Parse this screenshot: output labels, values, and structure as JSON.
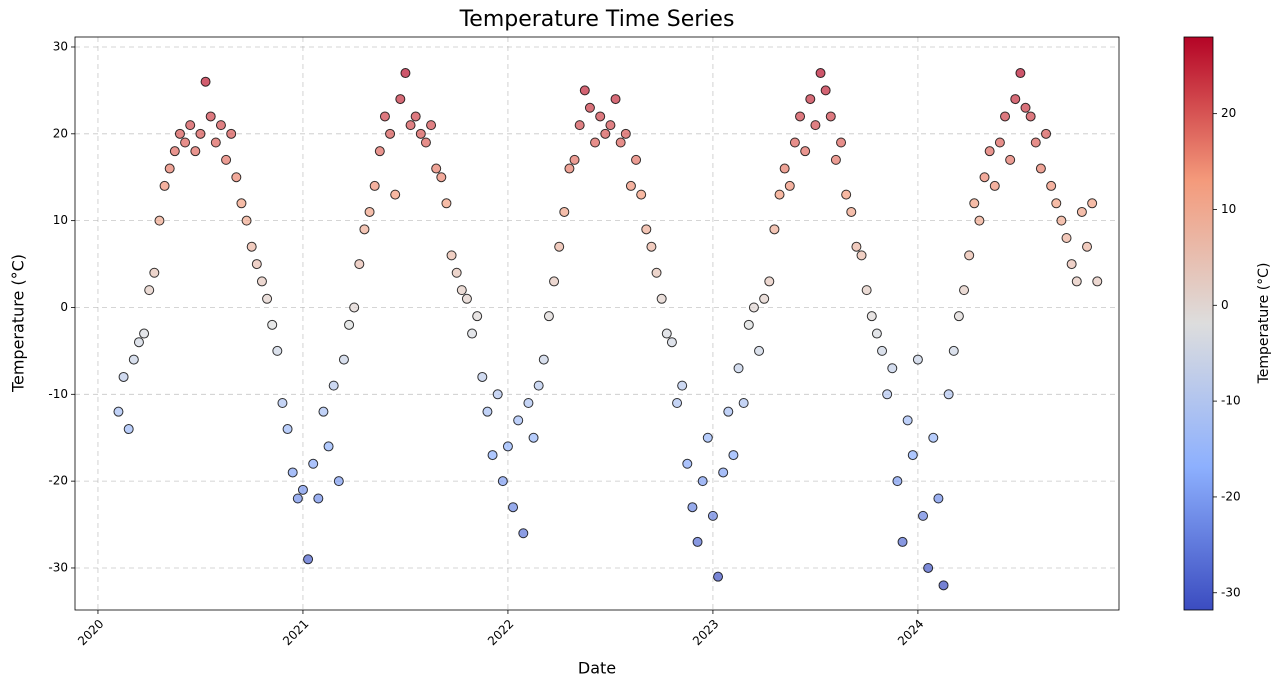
{
  "chart_data": {
    "type": "scatter",
    "title": "Temperature Time Series",
    "xlabel": "Date",
    "ylabel": "Temperature (°C)",
    "x": [
      2020.1,
      2020.125,
      2020.15,
      2020.175,
      2020.2,
      2020.225,
      2020.25,
      2020.275,
      2020.3,
      2020.325,
      2020.35,
      2020.375,
      2020.4,
      2020.425,
      2020.45,
      2020.475,
      2020.5,
      2020.525,
      2020.55,
      2020.575,
      2020.6,
      2020.625,
      2020.65,
      2020.675,
      2020.7,
      2020.725,
      2020.75,
      2020.775,
      2020.8,
      2020.825,
      2020.85,
      2020.875,
      2020.9,
      2020.925,
      2020.95,
      2020.975,
      2021,
      2021.025,
      2021.05,
      2021.075,
      2021.1,
      2021.125,
      2021.15,
      2021.175,
      2021.2,
      2021.225,
      2021.25,
      2021.275,
      2021.3,
      2021.325,
      2021.35,
      2021.375,
      2021.4,
      2021.425,
      2021.45,
      2021.475,
      2021.5,
      2021.525,
      2021.55,
      2021.575,
      2021.6,
      2021.625,
      2021.65,
      2021.675,
      2021.7,
      2021.725,
      2021.75,
      2021.775,
      2021.8,
      2021.825,
      2021.85,
      2021.875,
      2021.9,
      2021.925,
      2021.95,
      2021.975,
      2022,
      2022.025,
      2022.05,
      2022.075,
      2022.1,
      2022.125,
      2022.15,
      2022.175,
      2022.2,
      2022.225,
      2022.25,
      2022.275,
      2022.3,
      2022.325,
      2022.35,
      2022.375,
      2022.4,
      2022.425,
      2022.45,
      2022.475,
      2022.5,
      2022.525,
      2022.55,
      2022.575,
      2022.6,
      2022.625,
      2022.65,
      2022.675,
      2022.7,
      2022.725,
      2022.75,
      2022.775,
      2022.8,
      2022.825,
      2022.85,
      2022.875,
      2022.9,
      2022.925,
      2022.95,
      2022.975,
      2023,
      2023.025,
      2023.05,
      2023.075,
      2023.1,
      2023.125,
      2023.15,
      2023.175,
      2023.2,
      2023.225,
      2023.25,
      2023.275,
      2023.3,
      2023.325,
      2023.35,
      2023.375,
      2023.4,
      2023.425,
      2023.45,
      2023.475,
      2023.5,
      2023.525,
      2023.55,
      2023.575,
      2023.6,
      2023.625,
      2023.65,
      2023.675,
      2023.7,
      2023.725,
      2023.75,
      2023.775,
      2023.8,
      2023.825,
      2023.85,
      2023.875,
      2023.9,
      2023.925,
      2023.95,
      2023.975,
      2024,
      2024.025,
      2024.05,
      2024.075,
      2024.1,
      2024.125,
      2024.15,
      2024.175,
      2024.2,
      2024.225,
      2024.25,
      2024.275,
      2024.3,
      2024.325,
      2024.35,
      2024.375,
      2024.4,
      2024.425,
      2024.45,
      2024.475,
      2024.5,
      2024.525,
      2024.55,
      2024.575,
      2024.6,
      2024.625,
      2024.65,
      2024.675,
      2024.7,
      2024.725,
      2024.75,
      2024.775,
      2024.8,
      2024.825,
      2024.85,
      2024.875
    ],
    "values": [
      -12,
      -8,
      -14,
      -6,
      -4,
      -3,
      2,
      4,
      10,
      14,
      16,
      18,
      20,
      19,
      21,
      18,
      20,
      26,
      22,
      19,
      21,
      17,
      20,
      15,
      12,
      10,
      7,
      5,
      3,
      1,
      -2,
      -5,
      -11,
      -14,
      -19,
      -22,
      -21,
      -29,
      -18,
      -22,
      -12,
      -16,
      -9,
      -20,
      -6,
      -2,
      0,
      5,
      9,
      11,
      14,
      18,
      22,
      20,
      13,
      24,
      27,
      21,
      22,
      20,
      19,
      21,
      16,
      15,
      12,
      6,
      4,
      2,
      1,
      -3,
      -1,
      -8,
      -12,
      -17,
      -10,
      -20,
      -16,
      -23,
      -13,
      -26,
      -11,
      -15,
      -9,
      -6,
      -1,
      3,
      7,
      11,
      16,
      17,
      21,
      25,
      23,
      19,
      22,
      20,
      21,
      24,
      19,
      20,
      14,
      17,
      13,
      9,
      7,
      4,
      1,
      -3,
      -4,
      -11,
      -9,
      -18,
      -23,
      -27,
      -20,
      -15,
      -24,
      -31,
      -19,
      -12,
      -17,
      -7,
      -11,
      -2,
      0,
      -5,
      1,
      3,
      9,
      13,
      16,
      14,
      19,
      22,
      18,
      24,
      21,
      27,
      25,
      22,
      17,
      19,
      13,
      11,
      7,
      6,
      2,
      -1,
      -3,
      -5,
      -10,
      -7,
      -20,
      -27,
      -13,
      -17,
      -6,
      -24,
      -30,
      -15,
      -22,
      -32,
      -10,
      -5,
      -1,
      2,
      6,
      12,
      10,
      15,
      18,
      14,
      19,
      22,
      17,
      24,
      27,
      23,
      22,
      19,
      16,
      20,
      14,
      12,
      10,
      8,
      5,
      3,
      11,
      7,
      12,
      3
    ],
    "xlim": [
      2019.888,
      2024.981
    ],
    "xticks": [
      2020,
      2021,
      2022,
      2023,
      2024
    ],
    "ylim": [
      -34.84,
      31.15
    ],
    "yticks": [
      -30,
      -20,
      -10,
      0,
      10,
      20,
      30
    ],
    "grid": true,
    "colorbar": {
      "label": "Temperature (°C)",
      "lim": [
        -31.8,
        28
      ],
      "ticks": [
        -30,
        -20,
        -10,
        0,
        10,
        20
      ],
      "colormap": [
        "#3b4cc0",
        "#8db0fe",
        "#dddddd",
        "#f49a7b",
        "#b40426"
      ]
    }
  }
}
